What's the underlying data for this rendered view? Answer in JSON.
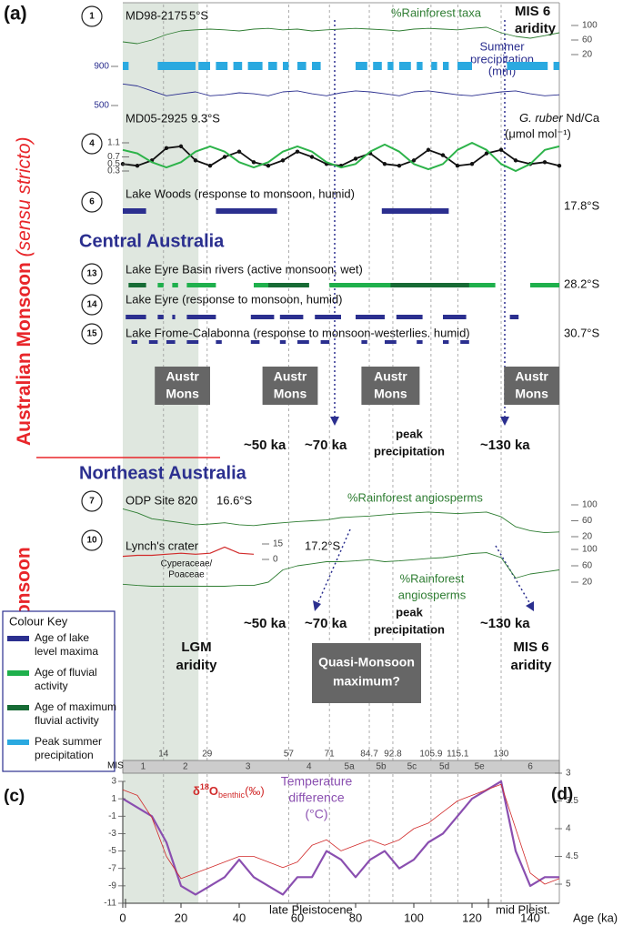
{
  "panel_labels": {
    "a": "(a)",
    "c": "(c)",
    "d": "(d)"
  },
  "side_labels": {
    "monsoon": "Australian Monsoon",
    "sensu": "(sensu stricto)",
    "quasi": "Quasi-Monsoon"
  },
  "regions": {
    "central": "Central Australia",
    "northeast": "Northeast Australia"
  },
  "records": {
    "md98": {
      "number": "1",
      "site": "MD98-2175",
      "lat": "5°S"
    },
    "md05": {
      "number": "4",
      "site": "MD05-2925",
      "lat": "9.3°S"
    },
    "woods": {
      "number": "6",
      "site": "Lake Woods (response to monsoon, humid)",
      "lat": "17.8°S"
    },
    "eyre_basin": {
      "number": "13",
      "site": "Lake Eyre Basin rivers (active monsoon, wet)",
      "lat": "28.2°S"
    },
    "eyre": {
      "number": "14",
      "site": "Lake Eyre (response to monsoon, humid)"
    },
    "frome": {
      "number": "15",
      "site": "Lake Frome-Calabonna (response to monsoon-westerlies. humid)",
      "lat": "30.7°S"
    },
    "odp": {
      "number": "7",
      "site": "ODP Site 820",
      "lat": "16.6°S"
    },
    "lynch": {
      "number": "10",
      "site": "Lynch's crater",
      "lat": "17.2°S"
    }
  },
  "annotations": {
    "mis6_top": [
      "MIS 6",
      "aridity"
    ],
    "ka50": "~50 ka",
    "ka70": "~70 ka",
    "ka130": "~130 ka",
    "peak": [
      "peak",
      "precipitation"
    ],
    "lgm": [
      "LGM",
      "aridity"
    ],
    "quasi_max": [
      "Quasi-Monsoon",
      "maximum?"
    ],
    "mis6_mid": [
      "MIS 6",
      "aridity"
    ],
    "late": "late Pleistocene",
    "mid": "mid Pleist."
  },
  "austr_mons": {
    "lines": [
      "Austr",
      "Mons"
    ],
    "ranges": [
      [
        11,
        30
      ],
      [
        48,
        67
      ],
      [
        82,
        102
      ],
      [
        131,
        150
      ]
    ]
  },
  "age_axis": {
    "label": "Age (ka)",
    "xlim": [
      0,
      150
    ],
    "xticks": [
      0,
      20,
      40,
      60,
      80,
      100,
      120,
      140
    ]
  },
  "lgm_band": [
    0,
    26
  ],
  "mis": {
    "label": "MIS",
    "boundaries": [
      14,
      29,
      57,
      71,
      84.7,
      92.8,
      105.9,
      115.1,
      130
    ],
    "stages": [
      "1",
      "2",
      "3",
      "4",
      "5a",
      "5b",
      "5c",
      "5d",
      "5e",
      "6"
    ]
  },
  "ages": [
    0,
    5,
    10,
    15,
    20,
    25,
    30,
    35,
    40,
    45,
    50,
    55,
    60,
    65,
    70,
    75,
    80,
    85,
    90,
    95,
    100,
    105,
    110,
    115,
    120,
    125,
    130,
    135,
    140,
    145,
    150
  ],
  "series": {
    "rainforest_taxa": {
      "name": "%Rainforest taxa",
      "color": "#2e7d32",
      "ylim": [
        0,
        100
      ],
      "yticks": [
        100,
        60,
        20
      ],
      "values": [
        55,
        50,
        60,
        75,
        85,
        88,
        90,
        88,
        85,
        90,
        92,
        88,
        90,
        85,
        88,
        90,
        92,
        90,
        88,
        85,
        90,
        92,
        90,
        88,
        92,
        95,
        80,
        70,
        65,
        72,
        80
      ]
    },
    "summer_precipitation": {
      "name": [
        "Summer",
        "precipitation",
        "(mm)"
      ],
      "color": "#2b2f8f",
      "ylim": [
        500,
        900
      ],
      "yticks": [
        900,
        500
      ],
      "values": [
        720,
        700,
        650,
        600,
        620,
        640,
        600,
        610,
        630,
        620,
        600,
        640,
        650,
        620,
        600,
        630,
        650,
        640,
        620,
        600,
        640,
        650,
        630,
        610,
        600,
        620,
        640,
        650,
        620,
        600,
        610
      ]
    },
    "nd_ca": {
      "name": [
        "G. ruber",
        "Nd/Ca",
        "(μmol mol⁻¹)"
      ],
      "color": "#111111",
      "ylim": [
        0.3,
        1.1
      ],
      "yticks": [
        1.1,
        0.7,
        0.5,
        0.3
      ],
      "values": [
        0.5,
        0.45,
        0.6,
        0.95,
        1.0,
        0.6,
        0.45,
        0.7,
        0.85,
        0.55,
        0.45,
        0.6,
        0.85,
        0.7,
        0.5,
        0.45,
        0.65,
        0.8,
        0.5,
        0.45,
        0.6,
        0.9,
        0.75,
        0.45,
        0.5,
        0.8,
        0.9,
        0.6,
        0.5,
        0.55,
        0.45
      ]
    },
    "green_curve": {
      "color": "#2db34a",
      "values": [
        0.9,
        0.8,
        0.55,
        0.4,
        0.55,
        0.85,
        1.0,
        0.85,
        0.55,
        0.4,
        0.55,
        0.85,
        1.0,
        0.85,
        0.55,
        0.4,
        0.5,
        0.85,
        1.05,
        0.85,
        0.5,
        0.35,
        0.5,
        0.9,
        1.1,
        0.9,
        0.5,
        0.3,
        0.5,
        0.9,
        1.0
      ]
    },
    "odp820": {
      "name": "%Rainforest angiosperms",
      "color": "#2e7d32",
      "ylim": [
        20,
        100
      ],
      "yticks": [
        100,
        60,
        20
      ],
      "values": [
        90,
        80,
        65,
        60,
        55,
        50,
        52,
        55,
        50,
        48,
        52,
        55,
        58,
        60,
        62,
        68,
        70,
        72,
        75,
        78,
        80,
        82,
        80,
        78,
        80,
        82,
        70,
        45,
        35,
        30,
        32
      ]
    },
    "lynch": {
      "name": [
        "%Rainforest",
        "angiosperms"
      ],
      "color": "#2e7d32",
      "ylim": [
        20,
        100
      ],
      "yticks": [
        100,
        60,
        20
      ],
      "values": [
        15,
        12,
        10,
        10,
        10,
        10,
        10,
        10,
        12,
        12,
        20,
        50,
        60,
        65,
        70,
        70,
        72,
        75,
        70,
        72,
        75,
        78,
        80,
        85,
        90,
        92,
        80,
        30,
        40,
        45,
        50
      ]
    },
    "cyperaceae": {
      "name": [
        "Cyperaceae/",
        "Poaceae"
      ],
      "color": "#d12a2a",
      "ylim": [
        0,
        15
      ],
      "yticks": [
        15,
        0
      ],
      "x": [
        0,
        5,
        10,
        15,
        20,
        25,
        30,
        35,
        40,
        45
      ],
      "values": [
        3,
        4,
        4,
        5,
        6,
        5,
        6,
        12,
        6,
        5
      ]
    },
    "temperature": {
      "name": [
        "Temperature",
        "difference",
        "(°C)"
      ],
      "color": "#8a4fb0",
      "ylim": [
        -11,
        3
      ],
      "yticks": [
        3,
        1,
        -1,
        -3,
        -5,
        -7,
        -9,
        -11
      ],
      "values": [
        1,
        0,
        -1,
        -4,
        -9,
        -10,
        -9,
        -8,
        -6,
        -8,
        -9,
        -10,
        -8,
        -8,
        -5,
        -6,
        -8,
        -6,
        -5,
        -7,
        -6,
        -4,
        -3,
        -1,
        1,
        2,
        3,
        -5,
        -9,
        -8,
        -8
      ]
    },
    "d18o": {
      "name": [
        "δ",
        "18",
        "O",
        "benthic",
        "(‰)"
      ],
      "color": "#d12a2a",
      "ylim": [
        3,
        5
      ],
      "yticks": [
        3,
        3.5,
        4,
        4.5,
        5
      ],
      "values": [
        3.3,
        3.4,
        3.8,
        4.5,
        4.9,
        4.8,
        4.7,
        4.6,
        4.5,
        4.5,
        4.6,
        4.7,
        4.6,
        4.3,
        4.2,
        4.4,
        4.3,
        4.2,
        4.3,
        4.2,
        4.0,
        3.9,
        3.7,
        3.5,
        3.4,
        3.3,
        3.2,
        4.0,
        4.8,
        5.0,
        4.9
      ]
    }
  },
  "intervals": {
    "summer_precipitation": {
      "color": "#2aa9e0",
      "ranges": [
        [
          0,
          2
        ],
        [
          12,
          25
        ],
        [
          26,
          30
        ],
        [
          32,
          36
        ],
        [
          38,
          41
        ],
        [
          43,
          48
        ],
        [
          50,
          53
        ],
        [
          55,
          57
        ],
        [
          60,
          63
        ],
        [
          65,
          68
        ],
        [
          80,
          84
        ],
        [
          86,
          89
        ],
        [
          91,
          93
        ],
        [
          95,
          99
        ],
        [
          101,
          103
        ],
        [
          106,
          108
        ],
        [
          110,
          112
        ],
        [
          115,
          120
        ],
        [
          132,
          146
        ],
        [
          148,
          150
        ]
      ]
    },
    "woods": {
      "color": "#2b2f8f",
      "ranges": [
        [
          0,
          8
        ],
        [
          32,
          53
        ],
        [
          89,
          112
        ]
      ]
    },
    "eyre_basin_fluvial": {
      "color": "#1fb04c",
      "ranges": [
        [
          2,
          8
        ],
        [
          12,
          14
        ],
        [
          17,
          19
        ],
        [
          22,
          32
        ],
        [
          45,
          64
        ],
        [
          71,
          128
        ],
        [
          140,
          150
        ]
      ]
    },
    "eyre_basin_max": {
      "color": "#176b35",
      "ranges": [
        [
          2,
          8
        ],
        [
          50,
          64
        ],
        [
          92,
          119
        ]
      ]
    },
    "eyre": {
      "color": "#2b2f8f",
      "ranges": [
        [
          1,
          8
        ],
        [
          12,
          14
        ],
        [
          17,
          18
        ],
        [
          22,
          32
        ],
        [
          44,
          52
        ],
        [
          54,
          62
        ],
        [
          66,
          75
        ],
        [
          80,
          90
        ],
        [
          94,
          103
        ],
        [
          110,
          118
        ],
        [
          133,
          136
        ]
      ]
    },
    "frome": {
      "color": "#2b2f8f",
      "ranges": [
        [
          3,
          5
        ],
        [
          9,
          12
        ],
        [
          15,
          18
        ],
        [
          22,
          26
        ],
        [
          32,
          34
        ],
        [
          44,
          47
        ],
        [
          54,
          56
        ],
        [
          60,
          64
        ],
        [
          68,
          71
        ],
        [
          82,
          84
        ],
        [
          90,
          94
        ],
        [
          101,
          103
        ],
        [
          110,
          112
        ],
        [
          116,
          119
        ]
      ]
    }
  },
  "colour_key": {
    "title": "Colour Key",
    "items": [
      {
        "label": [
          "Age of lake",
          "level maxima"
        ],
        "color": "#2b2f8f"
      },
      {
        "label": [
          "Age of fluvial",
          "activity"
        ],
        "color": "#1fb04c"
      },
      {
        "label": [
          "Age of maximum",
          "fluvial activity"
        ],
        "color": "#176b35"
      },
      {
        "label": [
          "Peak summer",
          "precipitation"
        ],
        "color": "#2aa9e0"
      }
    ]
  }
}
